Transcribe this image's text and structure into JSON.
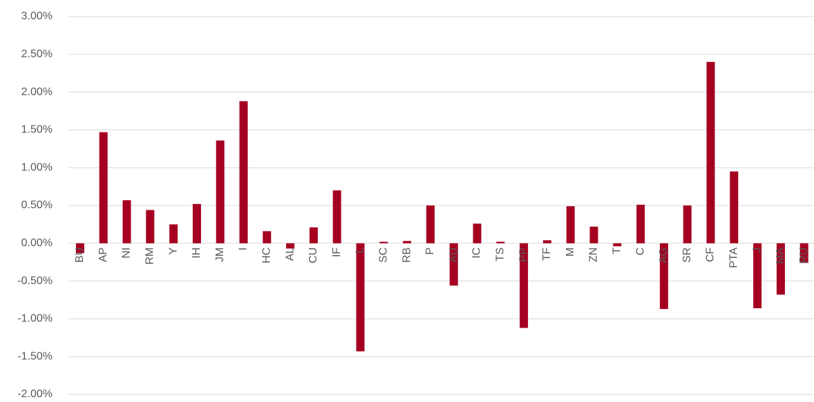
{
  "chart_data": {
    "type": "bar",
    "categories": [
      "BU",
      "AP",
      "NI",
      "RM",
      "Y",
      "IH",
      "JM",
      "I",
      "HC",
      "AL",
      "CU",
      "IF",
      "L",
      "SC",
      "RB",
      "P",
      "AU",
      "IC",
      "TS",
      "PP",
      "TF",
      "M",
      "ZN",
      "T",
      "C",
      "AG",
      "SR",
      "CF",
      "PTA",
      "J",
      "MA",
      "RU"
    ],
    "values": [
      -0.13,
      1.47,
      0.57,
      0.44,
      0.25,
      0.52,
      1.36,
      1.88,
      0.16,
      -0.07,
      0.21,
      0.7,
      -1.43,
      0.02,
      0.03,
      0.5,
      -0.56,
      0.26,
      0.02,
      -1.12,
      0.04,
      0.49,
      0.22,
      -0.04,
      0.51,
      -0.87,
      0.5,
      2.4,
      0.95,
      -0.86,
      -0.68,
      -0.26
    ],
    "color": "#a50021",
    "ylim": [
      -2,
      3
    ],
    "yticks": [
      {
        "value": -2,
        "label": "-2.00%"
      },
      {
        "value": -1.5,
        "label": "-1.50%"
      },
      {
        "value": -1,
        "label": "-1.00%"
      },
      {
        "value": -0.5,
        "label": "-0.50%"
      },
      {
        "value": 0,
        "label": "0.00%"
      },
      {
        "value": 0.5,
        "label": "0.50%"
      },
      {
        "value": 1,
        "label": "1.00%"
      },
      {
        "value": 1.5,
        "label": "1.50%"
      },
      {
        "value": 2,
        "label": "2.00%"
      },
      {
        "value": 2.5,
        "label": "2.50%"
      },
      {
        "value": 3,
        "label": "3.00%"
      }
    ],
    "grid": true
  }
}
